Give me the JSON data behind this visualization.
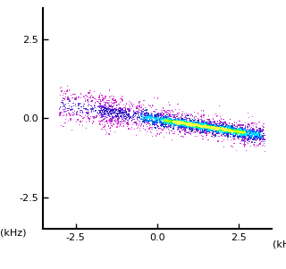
{
  "xlim": [
    -3.5,
    3.5
  ],
  "ylim": [
    -3.5,
    3.5
  ],
  "xticks": [
    -2.5,
    0.0,
    2.5
  ],
  "yticks": [
    -2.5,
    0.0,
    2.5
  ],
  "xlabel": "(kHz)",
  "ylabel": "(kHz)",
  "background_color": "#ffffff",
  "seed": 42,
  "slope": -0.16,
  "intercept": -0.03,
  "x_sparse_min": -3.0,
  "x_sparse_max": 3.3,
  "x_dense_min": -0.2,
  "x_dense_max": 3.2,
  "x_core_min": 0.3,
  "x_core_max": 2.8
}
